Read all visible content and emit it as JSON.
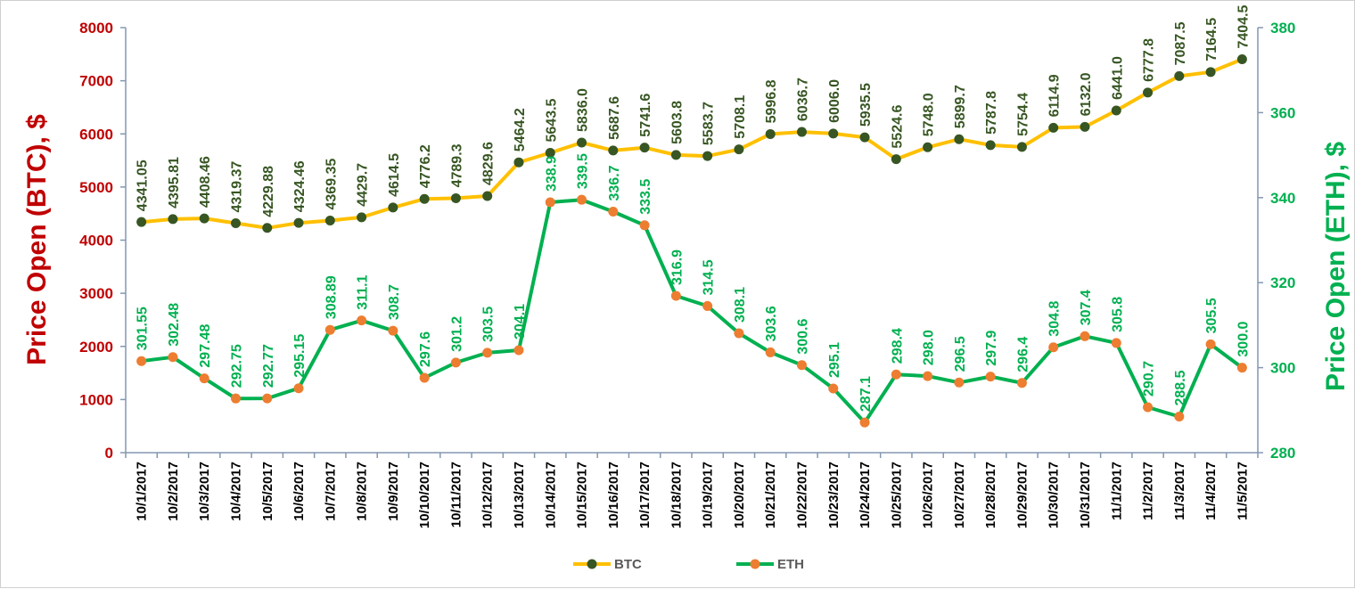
{
  "chart_data": {
    "type": "line",
    "x": [
      "10/1/2017",
      "10/2/2017",
      "10/3/2017",
      "10/4/2017",
      "10/5/2017",
      "10/6/2017",
      "10/7/2017",
      "10/8/2017",
      "10/9/2017",
      "10/10/2017",
      "10/11/2017",
      "10/12/2017",
      "10/13/2017",
      "10/14/2017",
      "10/15/2017",
      "10/16/2017",
      "10/17/2017",
      "10/18/2017",
      "10/19/2017",
      "10/20/2017",
      "10/21/2017",
      "10/22/2017",
      "10/23/2017",
      "10/24/2017",
      "10/25/2017",
      "10/26/2017",
      "10/27/2017",
      "10/28/2017",
      "10/29/2017",
      "10/30/2017",
      "10/31/2017",
      "11/1/2017",
      "11/2/2017",
      "11/3/2017",
      "11/4/2017",
      "11/5/2017"
    ],
    "ylabel_left": "Price Open (BTC), $",
    "ylabel_right": "Price Open (ETH), $",
    "ylim_left": [
      0,
      8000
    ],
    "ylim_right": [
      280,
      380
    ],
    "yticks_left": [
      "0",
      "1000",
      "2000",
      "3000",
      "4000",
      "5000",
      "6000",
      "7000",
      "8000"
    ],
    "yticks_right": [
      "280",
      "300",
      "320",
      "340",
      "360",
      "380"
    ],
    "grid": false,
    "legend_position": "bottom",
    "series": [
      {
        "name": "BTC",
        "axis": "left",
        "line_color": "#FFC000",
        "marker_color": "#375623",
        "label_color": "#375623",
        "values": [
          4341.05,
          4395.81,
          4408.46,
          4319.37,
          4229.88,
          4324.46,
          4369.35,
          4429.7,
          4614.5,
          4776.2,
          4789.3,
          4829.6,
          5464.2,
          5643.5,
          5836.0,
          5687.6,
          5741.6,
          5603.8,
          5583.7,
          5708.1,
          5996.8,
          6036.7,
          6006.0,
          5935.5,
          5524.6,
          5748.0,
          5899.7,
          5787.8,
          5754.4,
          6114.9,
          6132.0,
          6441.0,
          6777.8,
          7087.5,
          7164.5,
          7404.5
        ],
        "labels": [
          "4341.05",
          "4395.81",
          "4408.46",
          "4319.37",
          "4229.88",
          "4324.46",
          "4369.35",
          "4429.7",
          "4614.5",
          "4776.2",
          "4789.3",
          "4829.6",
          "5464.2",
          "5643.5",
          "5836.0",
          "5687.6",
          "5741.6",
          "5603.8",
          "5583.7",
          "5708.1",
          "5996.8",
          "6036.7",
          "6006.0",
          "5935.5",
          "5524.6",
          "5748.0",
          "5899.7",
          "5787.8",
          "5754.4",
          "6114.9",
          "6132.0",
          "6441.0",
          "6777.8",
          "7087.5",
          "7164.5",
          "7404.5"
        ]
      },
      {
        "name": "ETH",
        "axis": "right",
        "line_color": "#00B050",
        "marker_color": "#ED7D31",
        "label_color": "#00B050",
        "values": [
          301.55,
          302.48,
          297.48,
          292.75,
          292.77,
          295.15,
          308.89,
          311.1,
          308.7,
          297.6,
          301.2,
          303.5,
          304.1,
          338.9,
          339.5,
          336.7,
          333.5,
          316.9,
          314.5,
          308.1,
          303.6,
          300.6,
          295.1,
          287.1,
          298.4,
          298.0,
          296.5,
          297.9,
          296.4,
          304.8,
          307.4,
          305.8,
          290.7,
          288.5,
          305.5,
          300.0
        ],
        "labels": [
          "301.55",
          "302.48",
          "297.48",
          "292.75",
          "292.77",
          "295.15",
          "308.89",
          "311.1",
          "308.7",
          "297.6",
          "301.2",
          "303.5",
          "304.1",
          "338.9",
          "339.5",
          "336.7",
          "333.5",
          "316.9",
          "314.5",
          "308.1",
          "303.6",
          "300.6",
          "295.1",
          "287.1",
          "298.4",
          "298.0",
          "296.5",
          "297.9",
          "296.4",
          "304.8",
          "307.4",
          "305.8",
          "290.7",
          "288.5",
          "305.5",
          "300.0"
        ]
      }
    ]
  },
  "colors": {
    "left_axis_text": "#C00000",
    "right_axis_text": "#00B050",
    "axis_line": "#8497B0"
  }
}
